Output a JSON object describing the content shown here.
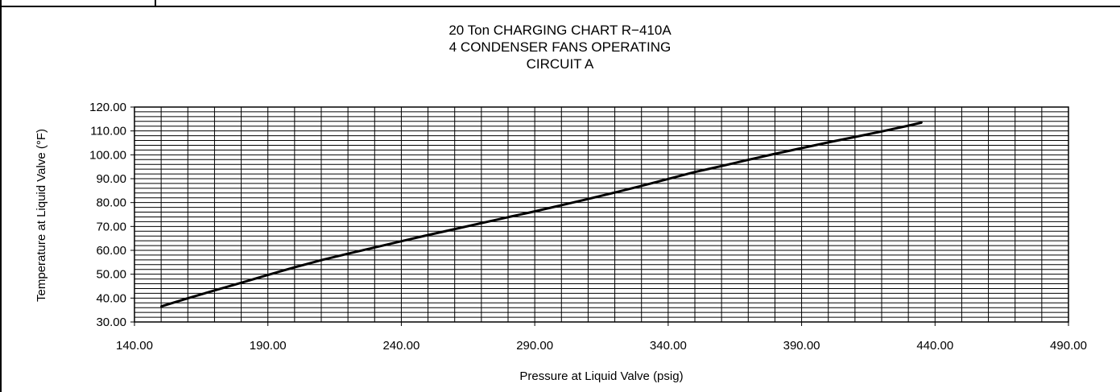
{
  "chart_data": {
    "type": "line",
    "title_lines": [
      "20 Ton CHARGING CHART R−410A",
      "4 CONDENSER FANS OPERATING",
      "CIRCUIT A"
    ],
    "xlabel": "Pressure at Liquid Valve (psig)",
    "ylabel": "Temperature at Liquid Valve  (°F)",
    "xlim": [
      140,
      490
    ],
    "ylim": [
      30,
      120
    ],
    "x_major_step": 50,
    "y_major_step": 10,
    "x_minor_step": 10,
    "y_minor_step": 2,
    "x_ticks": [
      "140.00",
      "190.00",
      "240.00",
      "290.00",
      "340.00",
      "390.00",
      "440.00",
      "490.00"
    ],
    "y_ticks": [
      "30.00",
      "40.00",
      "50.00",
      "60.00",
      "70.00",
      "80.00",
      "90.00",
      "100.00",
      "110.00",
      "120.00"
    ],
    "grid": true,
    "legend": "none",
    "line_color": "#000000",
    "series": [
      {
        "x": [
          150,
          160,
          170,
          180,
          190,
          200,
          210,
          220,
          230,
          240,
          250,
          260,
          270,
          280,
          290,
          300,
          310,
          320,
          330,
          340,
          350,
          360,
          370,
          380,
          390,
          400,
          410,
          420,
          430,
          435
        ],
        "y": [
          36.5,
          39.9,
          43.2,
          46.4,
          49.7,
          52.9,
          55.9,
          58.6,
          61.2,
          63.8,
          66.4,
          68.9,
          71.4,
          73.9,
          76.3,
          78.9,
          81.5,
          84.2,
          87.0,
          89.9,
          92.8,
          95.3,
          97.9,
          100.4,
          102.8,
          105.2,
          107.5,
          109.8,
          112.2,
          113.5
        ]
      }
    ]
  }
}
